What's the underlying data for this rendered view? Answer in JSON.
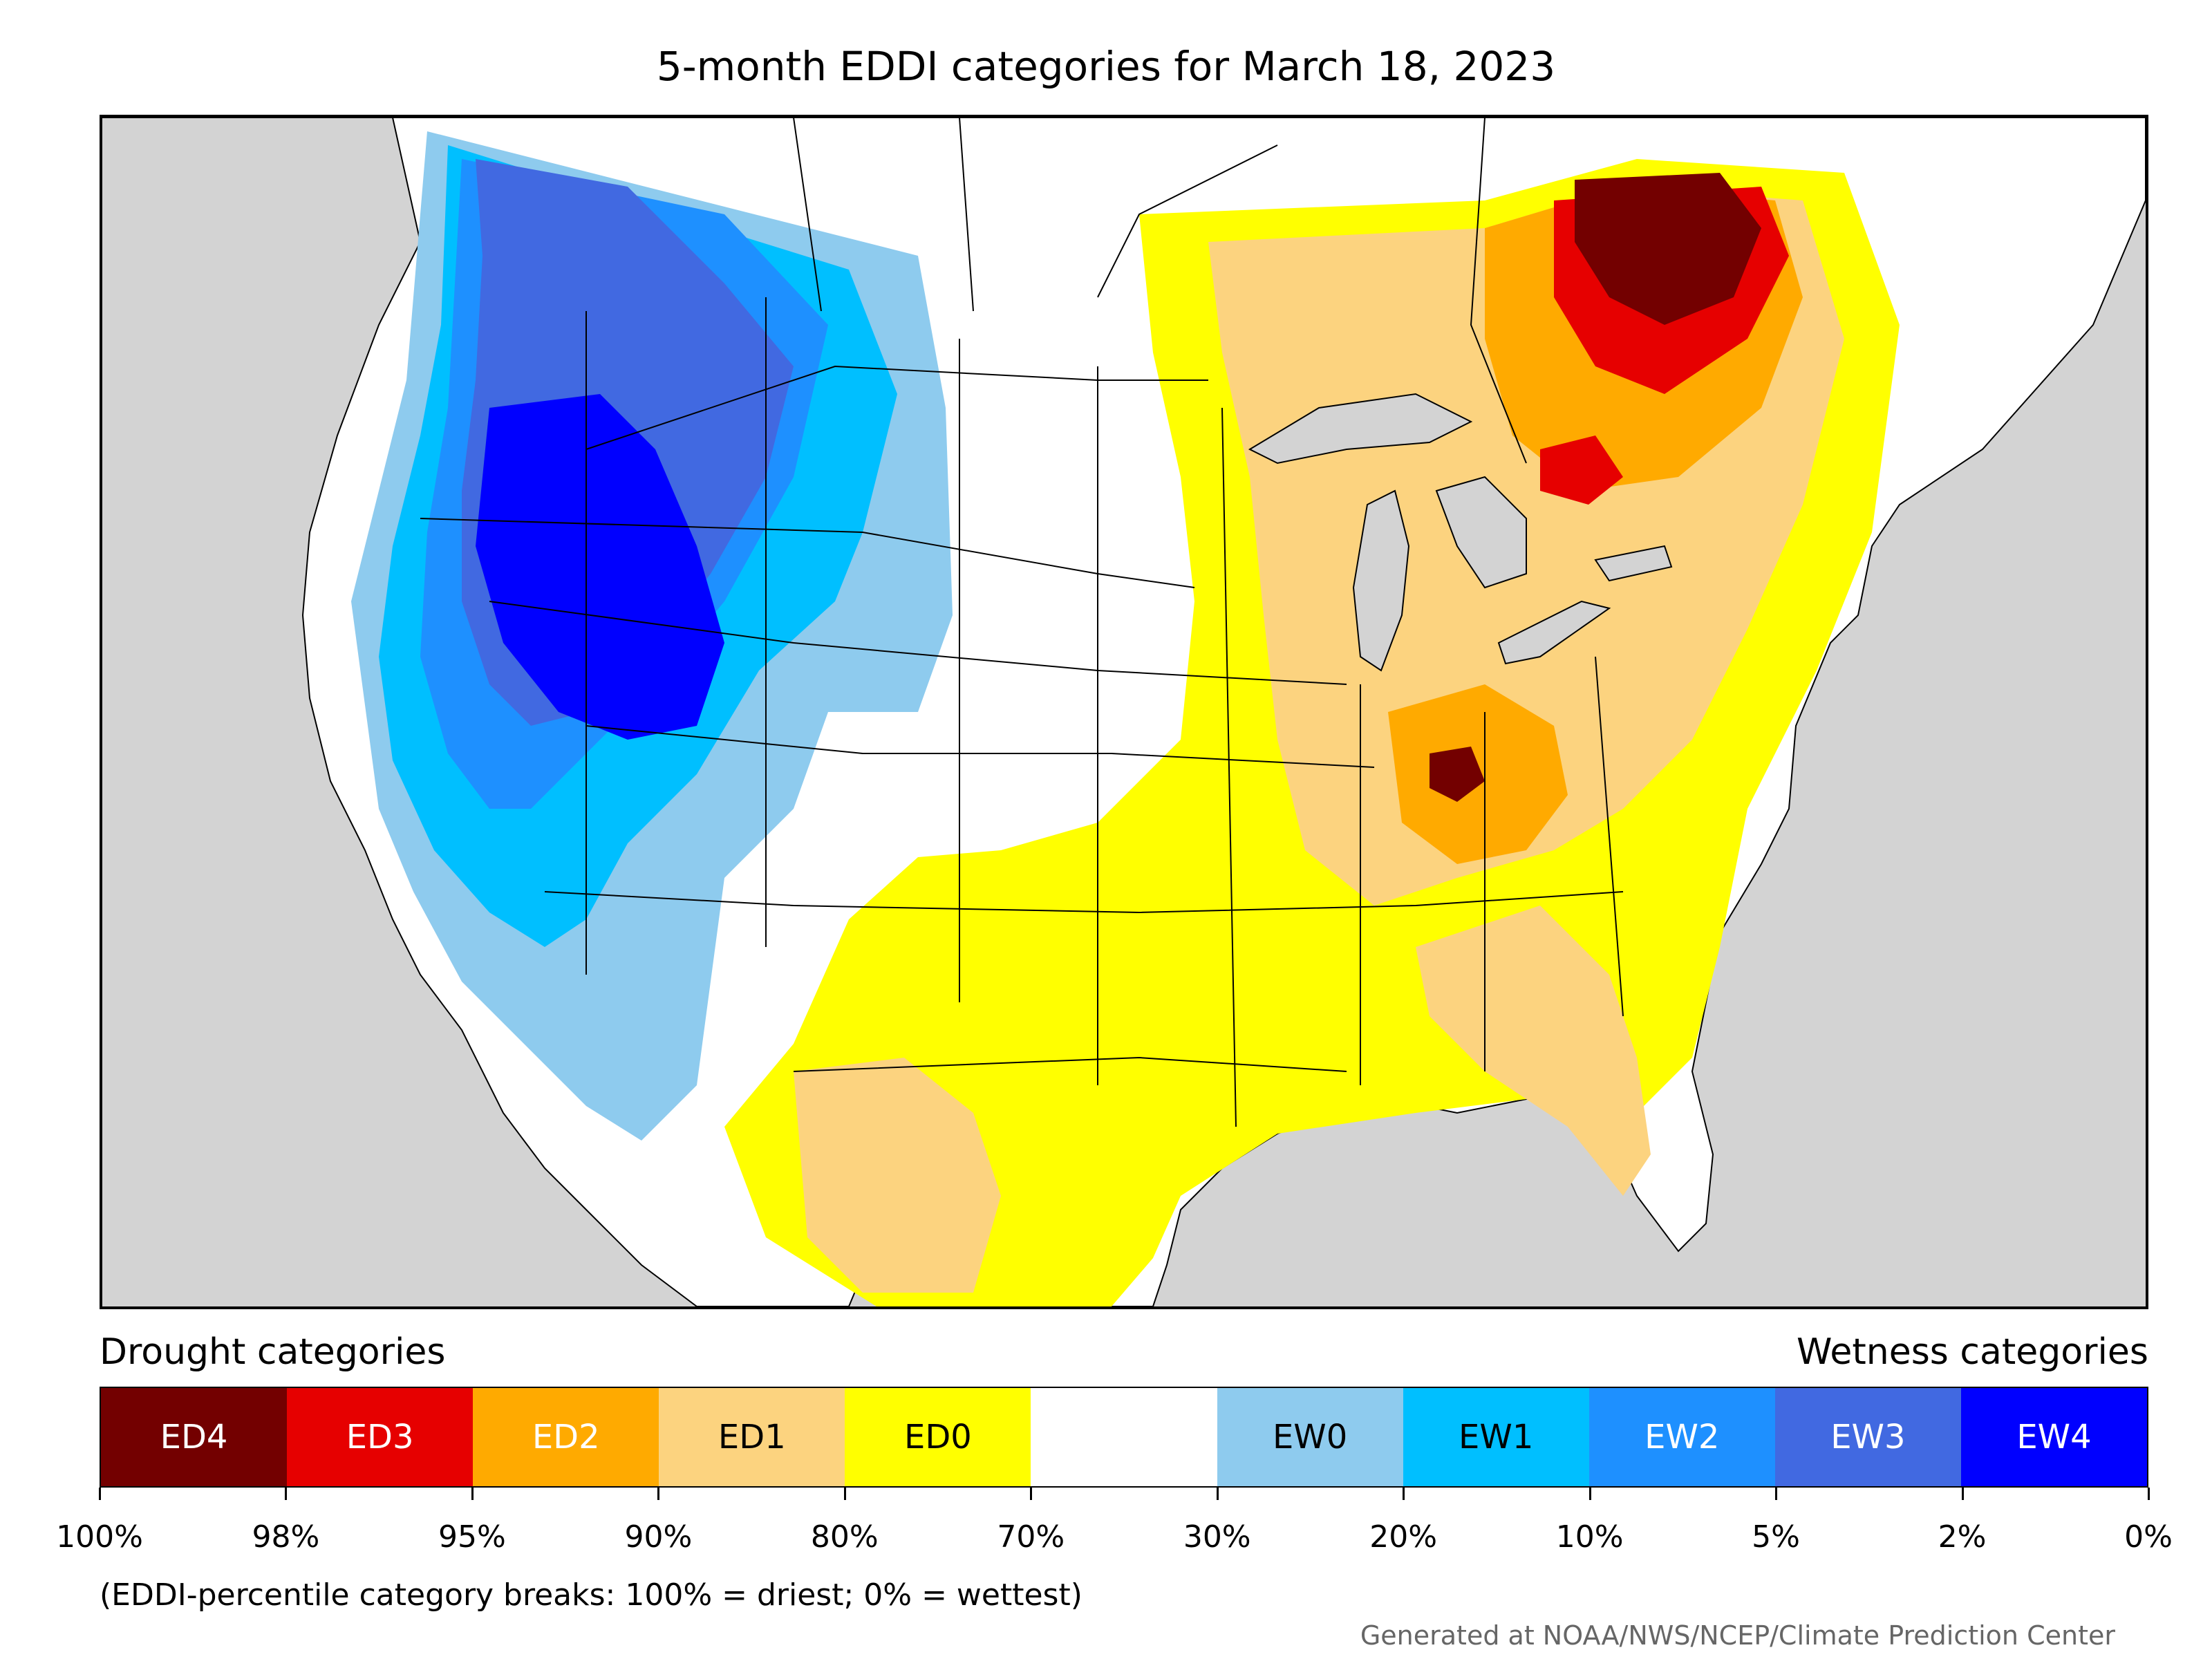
{
  "title": "5-month EDDI categories for March 18, 2023",
  "legend": {
    "left_heading": "Drought categories",
    "right_heading": "Wetness categories",
    "categories": [
      {
        "label": "ED4",
        "color": "#730000",
        "text_color": "#ffffff"
      },
      {
        "label": "ED3",
        "color": "#e60000",
        "text_color": "#ffffff"
      },
      {
        "label": "ED2",
        "color": "#ffaa00",
        "text_color": "#ffffff"
      },
      {
        "label": "ED1",
        "color": "#fcd37f",
        "text_color": "#000000"
      },
      {
        "label": "ED0",
        "color": "#ffff00",
        "text_color": "#000000"
      },
      {
        "label": "",
        "color": "#ffffff",
        "text_color": "#000000"
      },
      {
        "label": "EW0",
        "color": "#8ecbee",
        "text_color": "#000000"
      },
      {
        "label": "EW1",
        "color": "#00bfff",
        "text_color": "#000000"
      },
      {
        "label": "EW2",
        "color": "#1e90ff",
        "text_color": "#ffffff"
      },
      {
        "label": "EW3",
        "color": "#4169e1",
        "text_color": "#ffffff"
      },
      {
        "label": "EW4",
        "color": "#0000ff",
        "text_color": "#ffffff"
      }
    ],
    "tick_labels": [
      "100%",
      "98%",
      "95%",
      "90%",
      "80%",
      "70%",
      "30%",
      "20%",
      "10%",
      "5%",
      "2%",
      "0%"
    ]
  },
  "note": "(EDDI-percentile category breaks: 100% = driest; 0% = wettest)",
  "credit": "Generated at NOAA/NWS/NCEP/Climate Prediction Center",
  "map": {
    "background_color": "#d3d3d3",
    "land_color": "#ffffff",
    "lakes_color": "#d3d3d3"
  }
}
